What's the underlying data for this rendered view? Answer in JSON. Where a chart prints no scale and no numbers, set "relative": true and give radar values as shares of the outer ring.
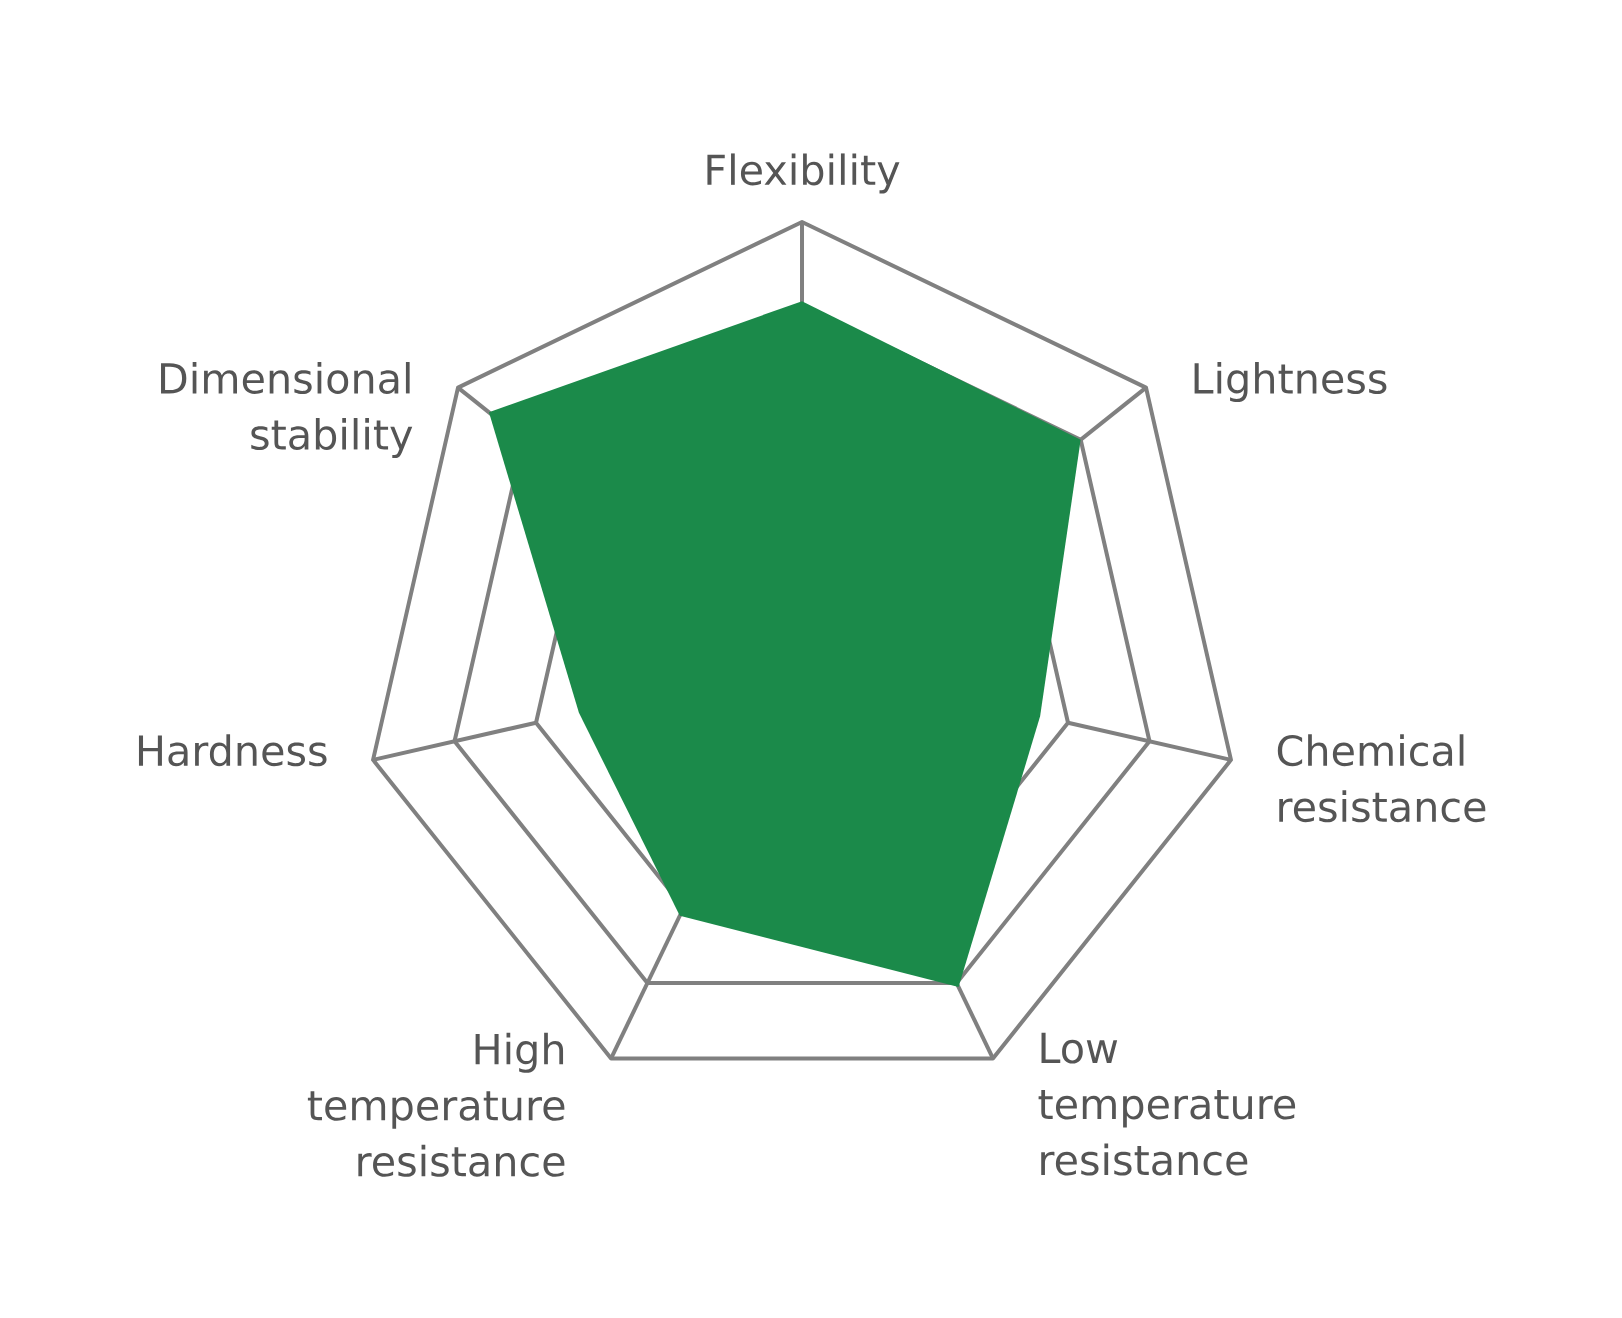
{
  "chart_data": {
    "type": "radar",
    "relative": true,
    "grid": true,
    "categories": [
      "Flexibility",
      "Lightness",
      "Chemical resistance",
      "Low temperature resistance",
      "High temperature resistance",
      "Hardness",
      "Dimensional stability"
    ],
    "series": [
      {
        "color": "#1b8a4a",
        "values": [
          0.82,
          0.81,
          0.555,
          0.82,
          0.64,
          0.52,
          0.91
        ]
      }
    ]
  }
}
